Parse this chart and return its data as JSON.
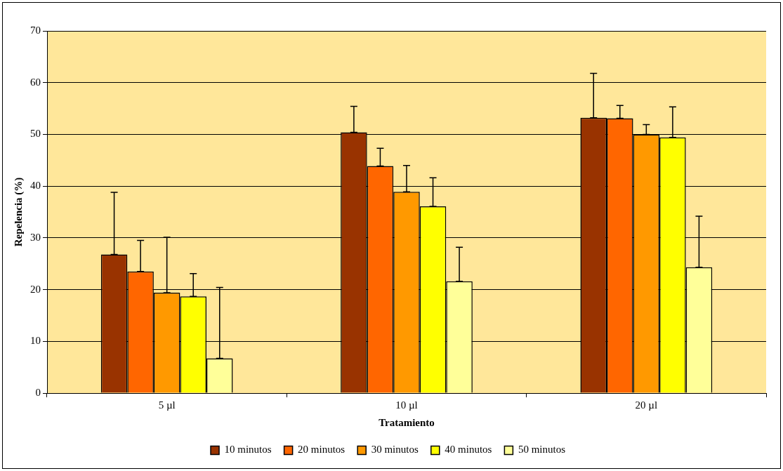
{
  "chart_data": {
    "type": "bar",
    "xlabel": "Tratamiento",
    "ylabel": "Repelencia (%)",
    "categories": [
      "5 µl",
      "10 µl",
      "20 µl"
    ],
    "series": [
      {
        "name": "10 minutos",
        "color": "#993300",
        "values": [
          26.8,
          50.4,
          53.2
        ],
        "errors": [
          [
            26.8,
            38.8
          ],
          [
            50.4,
            55.4
          ],
          [
            53.2,
            61.8
          ]
        ]
      },
      {
        "name": "20 minutos",
        "color": "#ff6600",
        "values": [
          23.5,
          43.9,
          53.1
        ],
        "errors": [
          [
            23.5,
            29.5
          ],
          [
            43.9,
            47.3
          ],
          [
            53.1,
            55.6
          ]
        ]
      },
      {
        "name": "30 minutos",
        "color": "#ff9900",
        "values": [
          19.4,
          38.9,
          50.0
        ],
        "errors": [
          [
            19.4,
            30.1
          ],
          [
            38.9,
            44.0
          ],
          [
            50.0,
            51.9
          ]
        ]
      },
      {
        "name": "40 minutos",
        "color": "#ffff00",
        "values": [
          18.7,
          36.1,
          49.4
        ],
        "errors": [
          [
            18.7,
            23.1
          ],
          [
            36.1,
            41.6
          ],
          [
            49.4,
            55.3
          ]
        ]
      },
      {
        "name": "50 minutos",
        "color": "#ffff99",
        "values": [
          6.7,
          21.6,
          24.3
        ],
        "errors": [
          [
            6.7,
            20.4
          ],
          [
            21.6,
            28.2
          ],
          [
            24.3,
            34.2
          ]
        ]
      }
    ],
    "ylim": [
      0,
      70
    ],
    "yticks": [
      0,
      10,
      20,
      30,
      40,
      50,
      60,
      70
    ],
    "grid": "y",
    "legend": "bottom"
  }
}
